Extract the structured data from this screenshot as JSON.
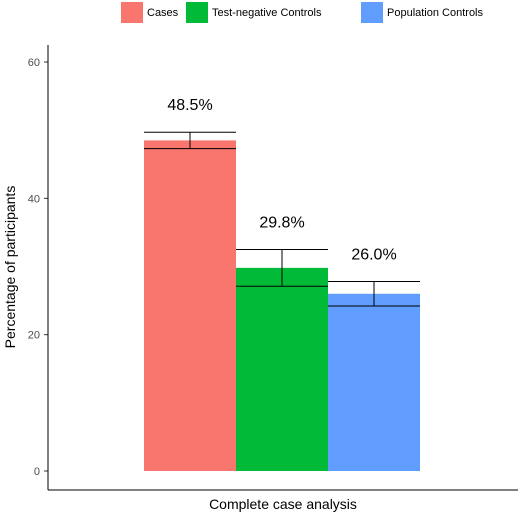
{
  "chart_data": {
    "type": "bar",
    "categories": [
      "Complete case analysis"
    ],
    "series": [
      {
        "name": "Cases",
        "values": [
          48.5
        ],
        "error": [
          [
            47.3,
            49.7
          ]
        ],
        "label": "48.5%",
        "color": "#F8766D"
      },
      {
        "name": "Test-negative Controls",
        "values": [
          29.8
        ],
        "error": [
          [
            27.1,
            32.5
          ]
        ],
        "label": "29.8%",
        "color": "#00BA38"
      },
      {
        "name": "Population Controls",
        "values": [
          26.0
        ],
        "error": [
          [
            24.2,
            27.8
          ]
        ],
        "label": "26.0%",
        "color": "#619CFF"
      }
    ],
    "title": "",
    "xlabel": "Complete case analysis",
    "ylabel": "Percentage of participants",
    "ylim": [
      0,
      60
    ],
    "yticks": [
      "0",
      "20",
      "40",
      "60"
    ],
    "grid": false,
    "legend": "top"
  }
}
